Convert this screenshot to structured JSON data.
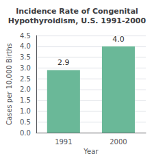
{
  "chart_data": {
    "type": "bar",
    "title": "Incidence Rate of Congenital\nHypothyroidism, U.S. 1991-2000",
    "xlabel": "Year",
    "ylabel": "Cases per 10,000 Births",
    "categories": [
      "1991",
      "2000"
    ],
    "values": [
      2.9,
      4.0
    ],
    "value_labels": [
      "2.9",
      "4.0"
    ],
    "data_labels": true,
    "color": "#6ab898",
    "ylim": [
      0,
      4.5
    ],
    "yticks": [
      {
        "value": 0,
        "label": "0.0"
      },
      0.5,
      {
        "value": 1,
        "label": "1.0"
      },
      1.5,
      {
        "value": 2,
        "label": "2.0"
      },
      2.5,
      {
        "value": 3,
        "label": "3.0"
      },
      3.5,
      {
        "value": 4,
        "label": "4.0"
      },
      4.5
    ],
    "grid": true
  }
}
